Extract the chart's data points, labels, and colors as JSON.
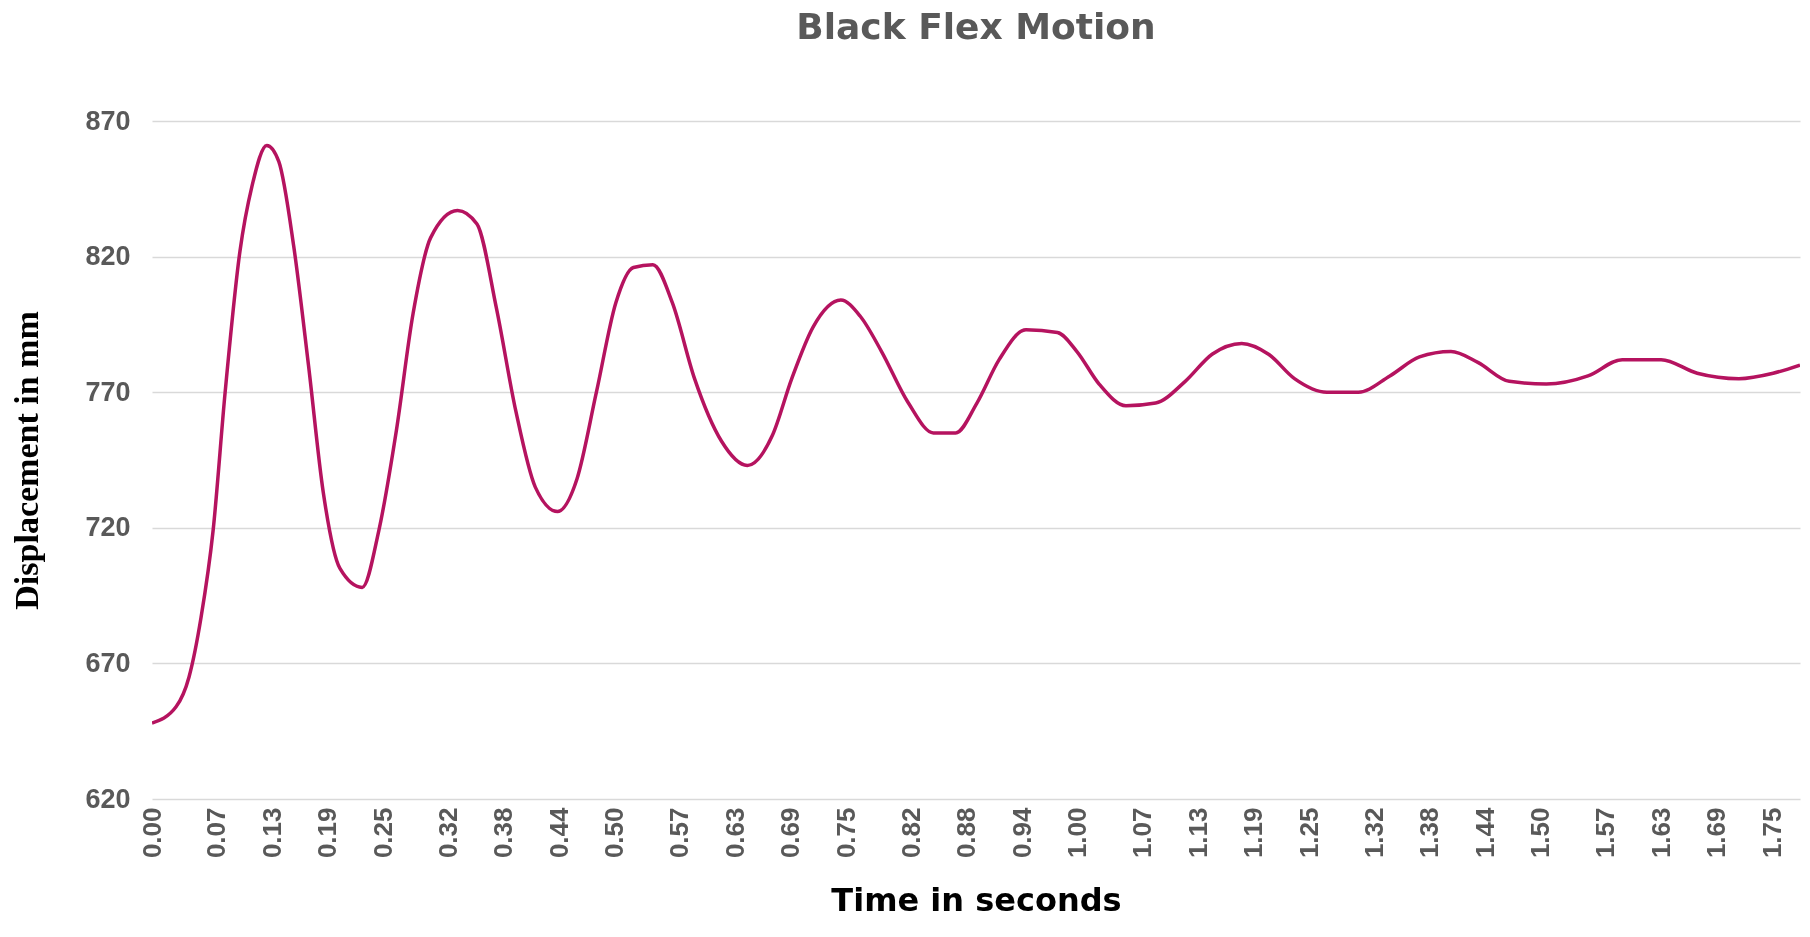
{
  "chart_data": {
    "type": "line",
    "title": "Black Flex Motion",
    "xlabel": "Time in seconds",
    "ylabel": "Displacement in mm",
    "x": [
      0,
      0.026,
      0.04,
      0.053,
      0.066,
      0.079,
      0.095,
      0.108,
      0.124,
      0.137,
      0.153,
      0.169,
      0.185,
      0.203,
      0.227,
      0.245,
      0.264,
      0.282,
      0.301,
      0.33,
      0.351,
      0.372,
      0.393,
      0.414,
      0.438,
      0.459,
      0.48,
      0.501,
      0.52,
      0.541,
      0.562,
      0.586,
      0.615,
      0.643,
      0.67,
      0.691,
      0.714,
      0.744,
      0.765,
      0.788,
      0.817,
      0.844,
      0.868,
      0.891,
      0.915,
      0.944,
      0.978,
      0.999,
      1.023,
      1.052,
      1.084,
      1.116,
      1.145,
      1.177,
      1.206,
      1.234,
      1.269,
      1.303,
      1.337,
      1.369,
      1.403,
      1.432,
      1.466,
      1.506,
      1.551,
      1.588,
      1.63,
      1.669,
      1.714,
      1.751,
      1.78
    ],
    "series": [
      {
        "color": "#b5135f",
        "values": [
          648,
          654,
          665,
          687,
          719,
          770,
          822,
          846,
          861,
          855,
          824,
          780,
          733,
          705,
          698,
          719,
          756,
          799,
          827,
          837,
          832,
          801,
          763,
          735,
          726,
          738,
          770,
          803,
          816,
          817,
          803,
          775,
          752,
          743,
          754,
          775,
          794,
          804,
          798,
          785,
          766,
          755,
          755,
          766,
          782,
          793,
          792,
          785,
          773,
          765,
          766,
          774,
          784,
          788,
          784,
          775,
          770,
          770,
          776,
          783,
          785,
          781,
          774,
          773,
          776,
          782,
          782,
          777,
          775,
          777,
          780
        ]
      }
    ],
    "xlim": [
      0,
      1.78
    ],
    "xticks": [
      {
        "value": 0,
        "label": "0.00"
      },
      {
        "value": 0.07,
        "label": "0.07"
      },
      {
        "value": 0.13,
        "label": "0.13"
      },
      {
        "value": 0.19,
        "label": "0.19"
      },
      {
        "value": 0.25,
        "label": "0.25"
      },
      {
        "value": 0.32,
        "label": "0.32"
      },
      {
        "value": 0.38,
        "label": "0.38"
      },
      {
        "value": 0.44,
        "label": "0.44"
      },
      {
        "value": 0.5,
        "label": "0.50"
      },
      {
        "value": 0.57,
        "label": "0.57"
      },
      {
        "value": 0.63,
        "label": "0.63"
      },
      {
        "value": 0.69,
        "label": "0.69"
      },
      {
        "value": 0.75,
        "label": "0.75"
      },
      {
        "value": 0.82,
        "label": "0.82"
      },
      {
        "value": 0.88,
        "label": "0.88"
      },
      {
        "value": 0.94,
        "label": "0.94"
      },
      {
        "value": 1.0,
        "label": "1.00"
      },
      {
        "value": 1.07,
        "label": "1.07"
      },
      {
        "value": 1.13,
        "label": "1.13"
      },
      {
        "value": 1.19,
        "label": "1.19"
      },
      {
        "value": 1.25,
        "label": "1.25"
      },
      {
        "value": 1.32,
        "label": "1.32"
      },
      {
        "value": 1.38,
        "label": "1.38"
      },
      {
        "value": 1.44,
        "label": "1.44"
      },
      {
        "value": 1.5,
        "label": "1.50"
      },
      {
        "value": 1.57,
        "label": "1.57"
      },
      {
        "value": 1.63,
        "label": "1.63"
      },
      {
        "value": 1.69,
        "label": "1.69"
      },
      {
        "value": 1.75,
        "label": "1.75"
      }
    ],
    "ylim": [
      620,
      870
    ],
    "yticks": [
      620,
      670,
      720,
      770,
      820,
      870
    ],
    "grid": "y",
    "line_style": "solid"
  }
}
